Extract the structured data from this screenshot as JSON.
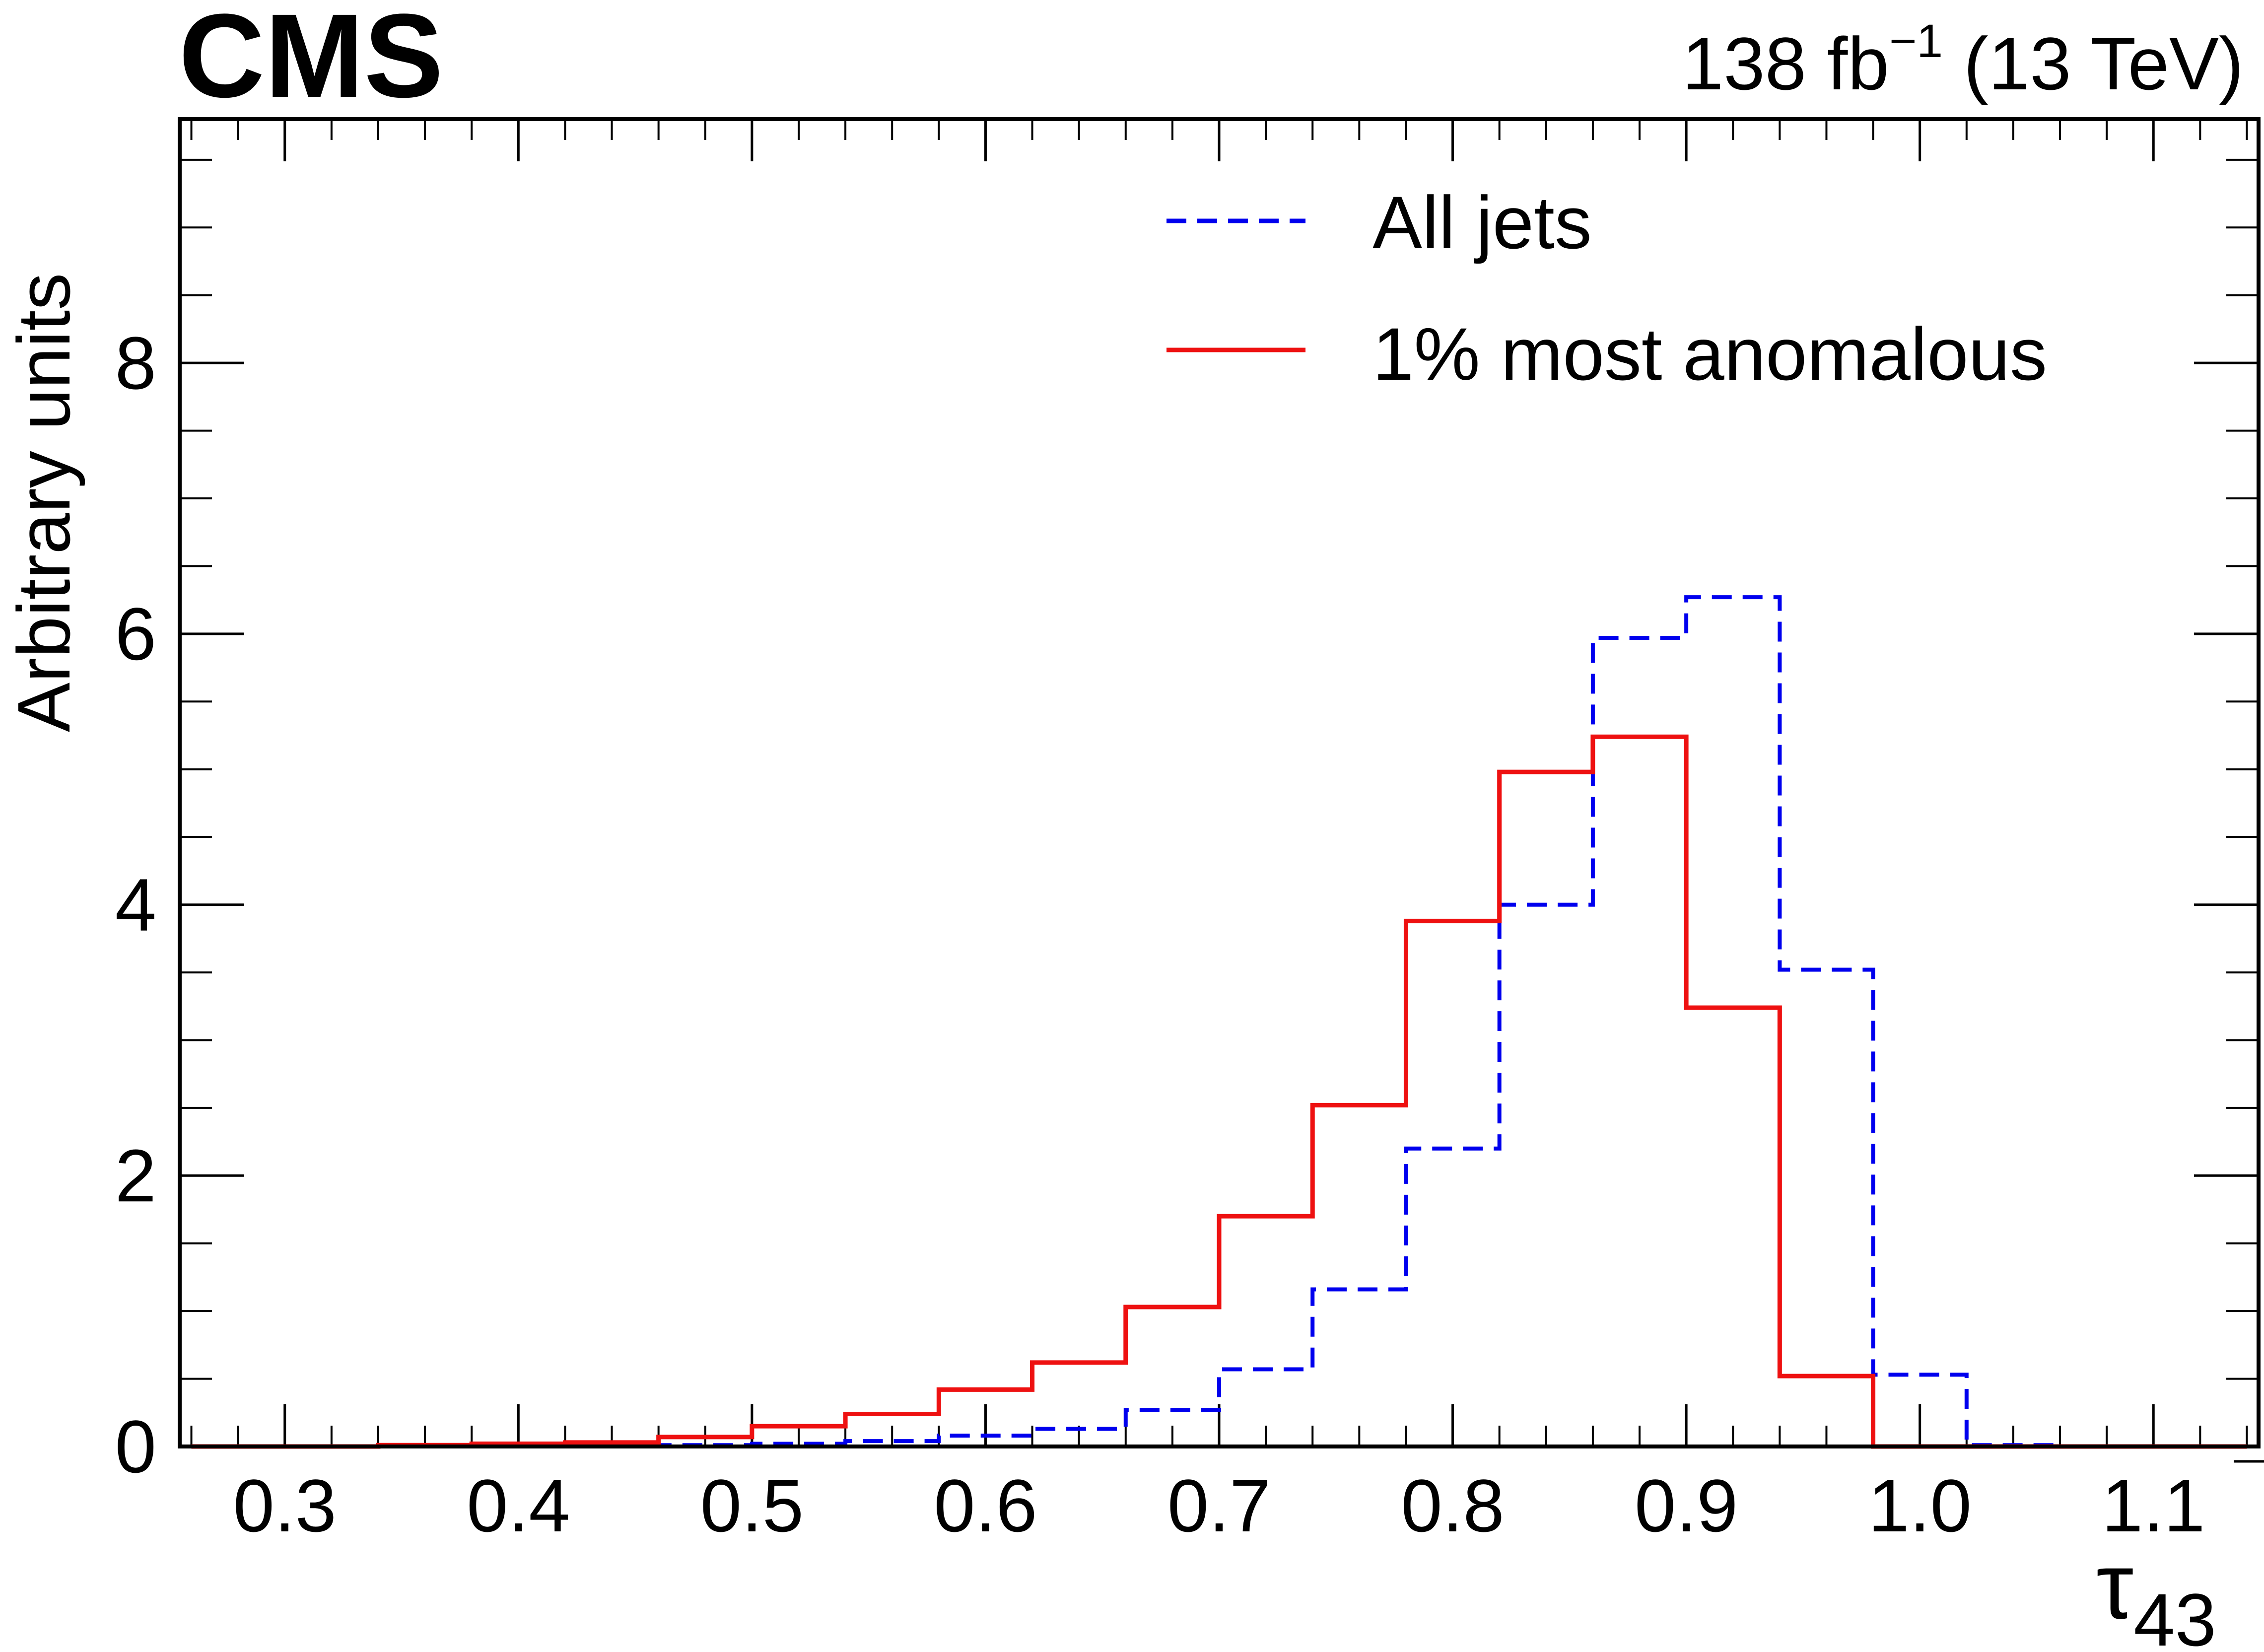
{
  "header": {
    "experiment": "CMS",
    "lumi_prefix": "138 fb",
    "lumi_exponent": "−1",
    "lumi_suffix": " (13 TeV)"
  },
  "chart_data": {
    "type": "histogram",
    "xlabel_symbol": "τ",
    "xlabel_subscript": "43",
    "ylabel": "Arbitrary units",
    "xlim": [
      0.255,
      1.145
    ],
    "ylim": [
      0,
      9.8
    ],
    "x_ticks": [
      0.3,
      0.4,
      0.5,
      0.6,
      0.7,
      0.8,
      0.9,
      1.0,
      1.1
    ],
    "x_tick_labels": [
      "0.3",
      "0.4",
      "0.5",
      "0.6",
      "0.7",
      "0.8",
      "0.9",
      "1.0",
      "1.1"
    ],
    "y_ticks": [
      0,
      2,
      4,
      6,
      8
    ],
    "y_tick_labels": [
      "0",
      "2",
      "4",
      "6",
      "8"
    ],
    "grid": false,
    "legend_position": "top-right",
    "bin_edges": [
      0.26,
      0.3,
      0.34,
      0.38,
      0.42,
      0.46,
      0.5,
      0.54,
      0.58,
      0.62,
      0.66,
      0.7,
      0.74,
      0.78,
      0.82,
      0.86,
      0.9,
      0.94,
      0.98,
      1.02,
      1.06,
      1.1,
      1.14
    ],
    "series": [
      {
        "name": "All jets",
        "style": "dashed",
        "color": "#0000ee",
        "values": [
          0,
          0,
          0,
          0,
          0,
          0.01,
          0.02,
          0.04,
          0.08,
          0.13,
          0.27,
          0.57,
          1.16,
          2.2,
          4.0,
          5.97,
          6.27,
          3.52,
          0.53,
          0.01,
          0,
          0
        ]
      },
      {
        "name": "1% most anomalous",
        "style": "solid",
        "color": "#ee1111",
        "values": [
          0,
          0,
          0.01,
          0.02,
          0.03,
          0.07,
          0.15,
          0.24,
          0.42,
          0.62,
          1.03,
          1.7,
          2.52,
          3.88,
          4.98,
          5.24,
          3.24,
          0.52,
          0,
          0,
          0,
          0
        ]
      }
    ]
  }
}
